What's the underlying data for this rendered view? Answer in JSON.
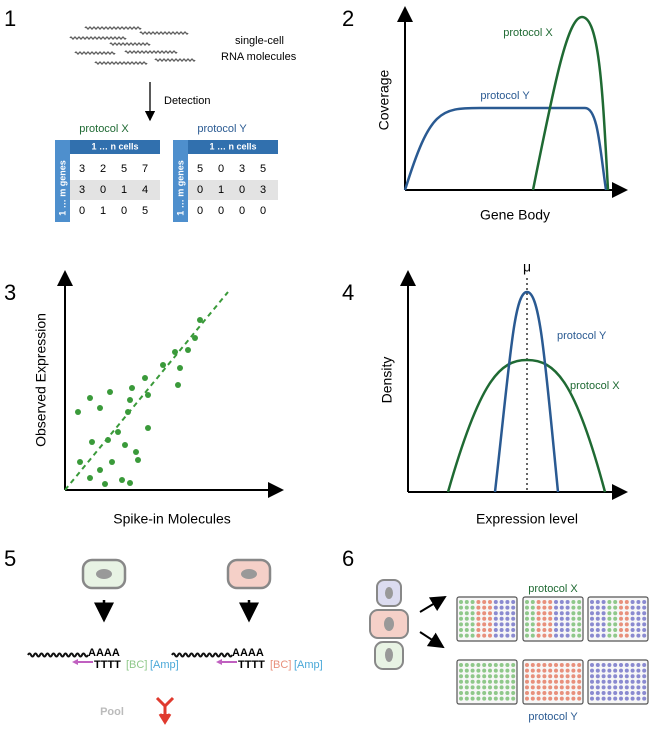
{
  "panel1": {
    "number": "1",
    "molecules_label": [
      "single-cell",
      "RNA molecules"
    ],
    "arrow_label": "Detection",
    "tables": [
      {
        "title": "protocol X",
        "column_header": "1 … n cells",
        "row_header": "1 … m genes",
        "rows": [
          [
            3,
            2,
            5,
            7
          ],
          [
            3,
            0,
            1,
            4
          ],
          [
            0,
            1,
            0,
            5
          ]
        ]
      },
      {
        "title": "protocol Y",
        "column_header": "1 … n cells",
        "row_header": "1 … m genes",
        "rows": [
          [
            5,
            0,
            3,
            5
          ],
          [
            0,
            1,
            0,
            3
          ],
          [
            0,
            0,
            0,
            0
          ]
        ]
      }
    ]
  },
  "panel2": {
    "number": "2",
    "y_label": "Coverage",
    "x_label": "Gene Body",
    "curve_labels": [
      "protocol X",
      "protocol Y"
    ]
  },
  "panel3": {
    "number": "3",
    "y_label": "Observed Expression",
    "x_label": "Spike-in Molecules"
  },
  "panel4": {
    "number": "4",
    "mean_label": "μ",
    "y_label": "Density",
    "x_label": "Expression level",
    "curve_labels": [
      "protocol Y",
      "protocol X"
    ]
  },
  "panel5": {
    "number": "5",
    "constructs": [
      {
        "poly_a": "AAAA",
        "poly_t": "TTTT",
        "barcode": "[BC]",
        "amp": "[Amp]"
      },
      {
        "poly_a": "AAAA",
        "poly_t": "TTTT",
        "barcode": "[BC]",
        "amp": "[Amp]"
      }
    ],
    "pool_label": "Pool"
  },
  "panel6": {
    "number": "6",
    "labels": [
      "protocol X",
      "protocol Y"
    ]
  }
}
